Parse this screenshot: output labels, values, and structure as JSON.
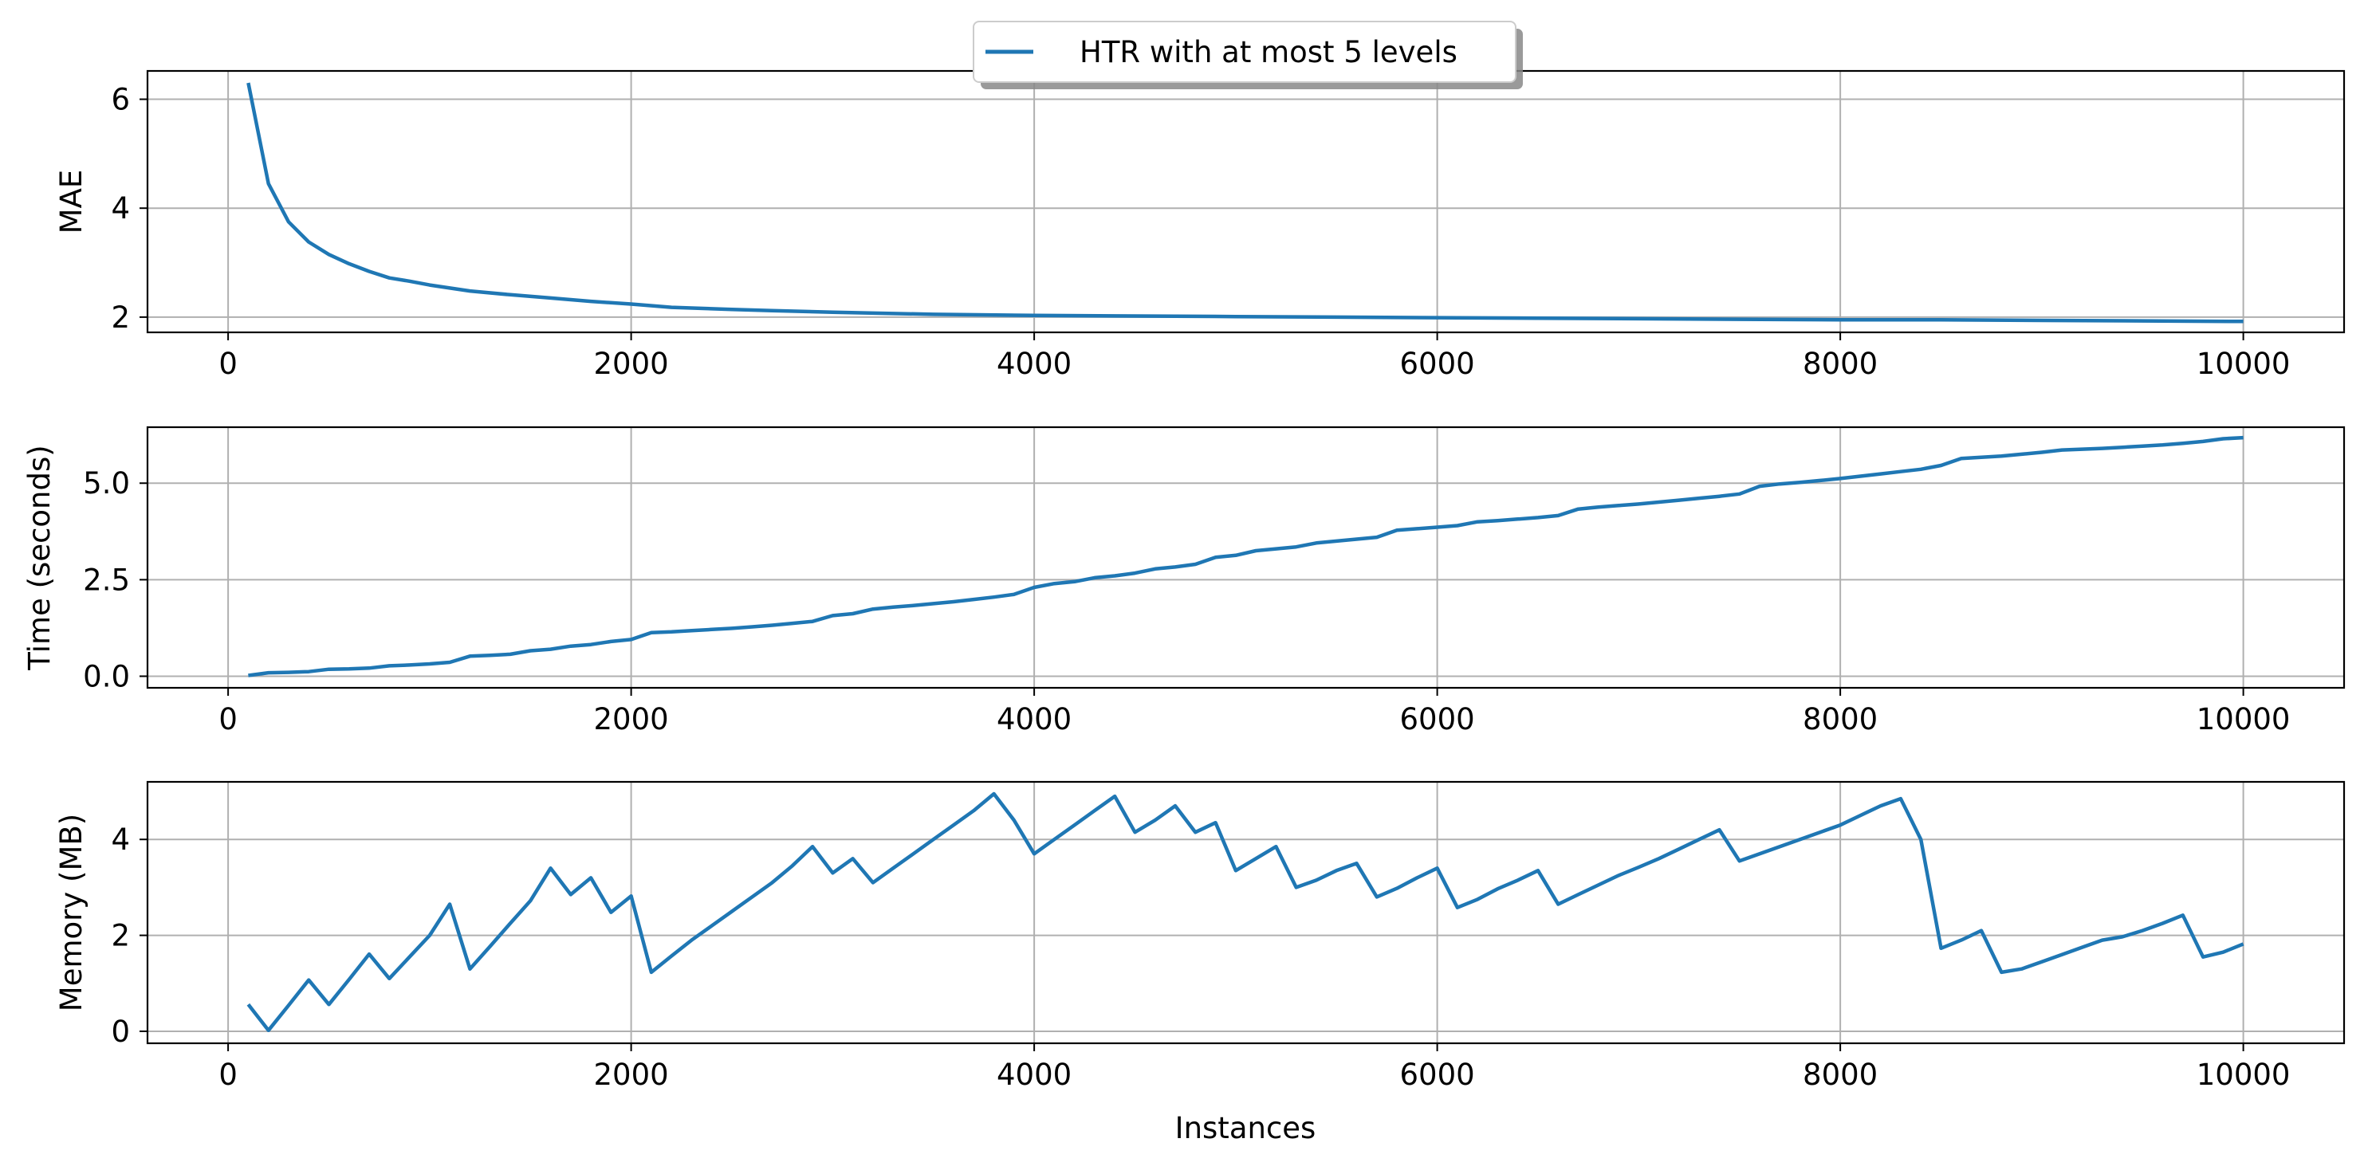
{
  "legend": {
    "label": "HTR with at most 5 levels",
    "color": "#1f77b4",
    "placement": "upper center"
  },
  "chart_data": [
    {
      "type": "line",
      "xlabel": "",
      "ylabel": "MAE",
      "xlim": [
        -400,
        10500
      ],
      "ylim": [
        1.72,
        6.52
      ],
      "xticks": [
        0,
        2000,
        4000,
        6000,
        8000,
        10000
      ],
      "yticks": [
        2,
        4,
        6
      ],
      "ytick_labels": [
        "2",
        "4",
        "6"
      ],
      "grid": true,
      "series": [
        {
          "name": "HTR with at most 5 levels",
          "color": "#1f77b4",
          "x": [
            100,
            200,
            300,
            400,
            500,
            600,
            700,
            800,
            900,
            1000,
            1200,
            1400,
            1600,
            1800,
            2000,
            2200,
            2500,
            2700,
            3000,
            3500,
            4000,
            4500,
            5000,
            5500,
            6000,
            6500,
            7000,
            7500,
            8000,
            8500,
            9000,
            9500,
            10000
          ],
          "y": [
            6.3,
            4.45,
            3.75,
            3.38,
            3.15,
            2.98,
            2.84,
            2.72,
            2.66,
            2.59,
            2.48,
            2.41,
            2.35,
            2.29,
            2.24,
            2.18,
            2.14,
            2.12,
            2.09,
            2.05,
            2.03,
            2.02,
            2.01,
            2.0,
            1.99,
            1.98,
            1.97,
            1.96,
            1.95,
            1.95,
            1.94,
            1.93,
            1.92
          ]
        }
      ]
    },
    {
      "type": "line",
      "xlabel": "",
      "ylabel": "Time (seconds)",
      "xlim": [
        -400,
        10500
      ],
      "ylim": [
        -0.3,
        6.45
      ],
      "xticks": [
        0,
        2000,
        4000,
        6000,
        8000,
        10000
      ],
      "yticks": [
        0.0,
        2.5,
        5.0
      ],
      "ytick_labels": [
        "0.0",
        "2.5",
        "5.0"
      ],
      "grid": true,
      "series": [
        {
          "name": "HTR with at most 5 levels",
          "color": "#1f77b4",
          "x": [
            100,
            200,
            300,
            400,
            500,
            600,
            700,
            800,
            900,
            1000,
            1100,
            1200,
            1300,
            1400,
            1500,
            1600,
            1700,
            1800,
            1900,
            2000,
            2100,
            2200,
            2300,
            2400,
            2500,
            2600,
            2700,
            2800,
            2900,
            3000,
            3100,
            3200,
            3300,
            3400,
            3500,
            3600,
            3700,
            3800,
            3900,
            4000,
            4100,
            4200,
            4300,
            4400,
            4500,
            4600,
            4700,
            4800,
            4900,
            5000,
            5100,
            5200,
            5300,
            5400,
            5500,
            5600,
            5700,
            5800,
            5900,
            6000,
            6100,
            6200,
            6300,
            6400,
            6500,
            6600,
            6700,
            6800,
            6900,
            7000,
            7100,
            7200,
            7300,
            7400,
            7500,
            7600,
            7700,
            7800,
            7900,
            8000,
            8100,
            8200,
            8300,
            8400,
            8500,
            8600,
            8700,
            8800,
            8900,
            9000,
            9100,
            9200,
            9300,
            9400,
            9500,
            9600,
            9700,
            9800,
            9900,
            10000
          ],
          "y": [
            0.02,
            0.09,
            0.1,
            0.12,
            0.18,
            0.19,
            0.21,
            0.27,
            0.29,
            0.32,
            0.36,
            0.52,
            0.54,
            0.57,
            0.66,
            0.7,
            0.78,
            0.82,
            0.9,
            0.95,
            1.13,
            1.15,
            1.18,
            1.21,
            1.24,
            1.28,
            1.32,
            1.37,
            1.42,
            1.57,
            1.62,
            1.74,
            1.79,
            1.83,
            1.88,
            1.93,
            1.99,
            2.05,
            2.12,
            2.3,
            2.4,
            2.45,
            2.55,
            2.6,
            2.67,
            2.78,
            2.83,
            2.9,
            3.08,
            3.13,
            3.25,
            3.3,
            3.35,
            3.45,
            3.5,
            3.55,
            3.6,
            3.78,
            3.82,
            3.86,
            3.9,
            4.0,
            4.03,
            4.07,
            4.11,
            4.16,
            4.33,
            4.38,
            4.42,
            4.46,
            4.51,
            4.56,
            4.61,
            4.66,
            4.72,
            4.92,
            4.98,
            5.02,
            5.07,
            5.12,
            5.18,
            5.24,
            5.3,
            5.36,
            5.46,
            5.64,
            5.67,
            5.7,
            5.75,
            5.8,
            5.86,
            5.88,
            5.9,
            5.93,
            5.96,
            5.99,
            6.03,
            6.08,
            6.15,
            6.18
          ]
        }
      ]
    },
    {
      "type": "line",
      "xlabel": "Instances",
      "ylabel": "Memory (MB)",
      "xlim": [
        -400,
        10500
      ],
      "ylim": [
        -0.25,
        5.2
      ],
      "xticks": [
        0,
        2000,
        4000,
        6000,
        8000,
        10000
      ],
      "yticks": [
        0,
        2,
        4
      ],
      "ytick_labels": [
        "0",
        "2",
        "4"
      ],
      "grid": true,
      "series": [
        {
          "name": "HTR with at most 5 levels",
          "color": "#1f77b4",
          "x": [
            100,
            200,
            300,
            400,
            500,
            600,
            700,
            800,
            900,
            1000,
            1100,
            1200,
            1300,
            1400,
            1500,
            1600,
            1700,
            1800,
            1900,
            2000,
            2100,
            2200,
            2300,
            2400,
            2500,
            2600,
            2700,
            2800,
            2900,
            3000,
            3100,
            3200,
            3300,
            3400,
            3500,
            3600,
            3700,
            3800,
            3900,
            4000,
            4100,
            4200,
            4300,
            4400,
            4500,
            4600,
            4700,
            4800,
            4900,
            5000,
            5100,
            5200,
            5300,
            5400,
            5500,
            5600,
            5700,
            5800,
            5900,
            6000,
            6100,
            6200,
            6300,
            6400,
            6500,
            6600,
            6700,
            6800,
            6900,
            7000,
            7100,
            7200,
            7300,
            7400,
            7500,
            7600,
            7700,
            7800,
            7900,
            8000,
            8100,
            8200,
            8300,
            8400,
            8500,
            8600,
            8700,
            8800,
            8900,
            9000,
            9100,
            9200,
            9300,
            9400,
            9500,
            9600,
            9700,
            9800,
            9900,
            10000
          ],
          "y": [
            0.56,
            0.02,
            0.54,
            1.07,
            0.56,
            1.08,
            1.61,
            1.1,
            1.55,
            2.0,
            2.65,
            1.3,
            1.77,
            2.25,
            2.72,
            3.4,
            2.85,
            3.2,
            2.48,
            2.82,
            1.23,
            1.57,
            1.9,
            2.2,
            2.5,
            2.8,
            3.1,
            3.45,
            3.85,
            3.3,
            3.6,
            3.1,
            3.4,
            3.7,
            4.0,
            4.3,
            4.6,
            4.95,
            4.4,
            3.7,
            4.0,
            4.3,
            4.6,
            4.9,
            4.15,
            4.4,
            4.7,
            4.15,
            4.35,
            3.35,
            3.6,
            3.85,
            3.0,
            3.15,
            3.35,
            3.5,
            2.8,
            2.98,
            3.2,
            3.4,
            2.58,
            2.75,
            2.97,
            3.15,
            3.35,
            2.65,
            2.85,
            3.05,
            3.25,
            3.42,
            3.6,
            3.8,
            4.0,
            4.2,
            3.55,
            3.7,
            3.85,
            4.0,
            4.15,
            4.3,
            4.5,
            4.7,
            4.85,
            4.0,
            1.73,
            1.9,
            2.1,
            1.23,
            1.3,
            1.45,
            1.6,
            1.75,
            1.9,
            1.97,
            2.1,
            2.25,
            2.42,
            1.55,
            1.65,
            1.82
          ]
        }
      ]
    }
  ]
}
